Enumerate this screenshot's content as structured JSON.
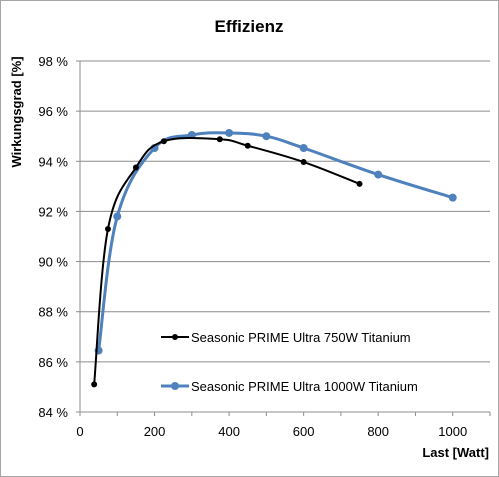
{
  "chart_data": {
    "type": "line",
    "title": "Effizienz",
    "xlabel": "Last [Watt]",
    "ylabel": "Wirkungsgrad [%]",
    "xlim": [
      0,
      1100
    ],
    "ylim": [
      84,
      98
    ],
    "x_ticks": [
      0,
      200,
      400,
      600,
      800,
      1000
    ],
    "y_ticks": [
      84,
      86,
      88,
      90,
      92,
      94,
      96,
      98
    ],
    "y_tick_labels": [
      "84 %",
      "86 %",
      "88 %",
      "90 %",
      "92 %",
      "94 %",
      "96 %",
      "98 %"
    ],
    "grid": "horizontal",
    "legend_position": "lower-right, inside plot",
    "series": [
      {
        "name": "Seasonic PRIME Ultra 750W Titanium",
        "color": "#000000",
        "x": [
          38,
          75,
          150,
          225,
          375,
          450,
          600,
          750
        ],
        "y": [
          85.1,
          91.3,
          93.75,
          94.8,
          94.88,
          94.62,
          93.97,
          93.1
        ]
      },
      {
        "name": "Seasonic PRIME Ultra 1000W Titanium",
        "color": "#4f81bd",
        "x": [
          50,
          100,
          200,
          300,
          400,
          500,
          600,
          800,
          1000
        ],
        "y": [
          86.45,
          91.8,
          94.53,
          95.05,
          95.13,
          95.0,
          94.53,
          93.47,
          92.55
        ]
      }
    ]
  }
}
